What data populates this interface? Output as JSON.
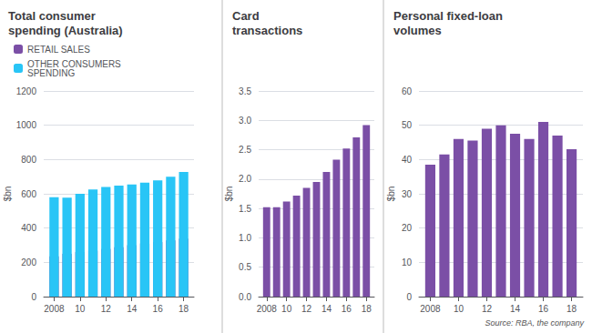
{
  "chart_data": [
    {
      "type": "bar",
      "title": "Total consumer\nspending (Australia)",
      "ylabel": "$bn",
      "x": [
        2008,
        2009,
        2010,
        2011,
        2012,
        2013,
        2014,
        2015,
        2016,
        2017,
        2018
      ],
      "series": [
        {
          "name": "RETAIL SALES",
          "color": "#7B4FA6",
          "values": [
            235,
            250,
            260,
            268,
            278,
            288,
            300,
            310,
            318,
            328,
            338
          ]
        },
        {
          "name": "OTHER CONSUMERS\nSPENDING",
          "color": "#29C5F6",
          "values": [
            580,
            578,
            600,
            625,
            640,
            648,
            655,
            665,
            678,
            700,
            728
          ]
        }
      ],
      "stacked": true,
      "legend": "upper left",
      "xlim": [
        2007.2,
        2018.8
      ],
      "xticks": [
        2008,
        {
          "value": 2010,
          "label": "10"
        },
        {
          "value": 2012,
          "label": "12"
        },
        {
          "value": 2014,
          "label": "14"
        },
        {
          "value": 2016,
          "label": "16"
        },
        {
          "value": 2018,
          "label": "18"
        }
      ],
      "ylim": [
        0,
        1200
      ],
      "yticks": [
        0,
        200,
        400,
        600,
        800,
        1000,
        1200
      ],
      "grid": true
    },
    {
      "type": "bar",
      "title": "Card\ntransactions",
      "ylabel": "$bn",
      "x": [
        2008,
        2009,
        2010,
        2011,
        2012,
        2013,
        2014,
        2015,
        2016,
        2017,
        2018
      ],
      "values": [
        1.52,
        1.52,
        1.62,
        1.72,
        1.85,
        1.95,
        2.12,
        2.33,
        2.52,
        2.71,
        2.92
      ],
      "color": "#7B4FA6",
      "xlim": [
        2007.2,
        2018.8
      ],
      "xticks": [
        2008,
        {
          "value": 2010,
          "label": "10"
        },
        {
          "value": 2012,
          "label": "12"
        },
        {
          "value": 2014,
          "label": "14"
        },
        {
          "value": 2016,
          "label": "16"
        },
        {
          "value": 2018,
          "label": "18"
        }
      ],
      "ylim": [
        0,
        3.5
      ],
      "yticks": [
        {
          "value": 0,
          "label": "0.0"
        },
        0.5,
        {
          "value": 1,
          "label": "1.0"
        },
        1.5,
        {
          "value": 2,
          "label": "2.0"
        },
        2.5,
        {
          "value": 3,
          "label": "3.0"
        },
        3.5
      ],
      "grid": true
    },
    {
      "type": "bar",
      "title": "Personal fixed-loan\nvolumes",
      "ylabel": "$bn",
      "x": [
        2008,
        2009,
        2010,
        2011,
        2012,
        2013,
        2014,
        2015,
        2016,
        2017,
        2018
      ],
      "values": [
        38.5,
        41.5,
        46.0,
        45.5,
        49.0,
        50.0,
        47.5,
        46.0,
        51.0,
        47.0,
        43.0
      ],
      "color": "#7B4FA6",
      "xlim": [
        2007.2,
        2018.8
      ],
      "xticks": [
        2008,
        {
          "value": 2010,
          "label": "10"
        },
        {
          "value": 2012,
          "label": "12"
        },
        {
          "value": 2014,
          "label": "14"
        },
        {
          "value": 2016,
          "label": "16"
        },
        {
          "value": 2018,
          "label": "18"
        }
      ],
      "ylim": [
        0,
        60
      ],
      "yticks": [
        0,
        10,
        20,
        30,
        40,
        50,
        60
      ],
      "grid": true,
      "annotation": "Source: RBA, the company"
    }
  ]
}
